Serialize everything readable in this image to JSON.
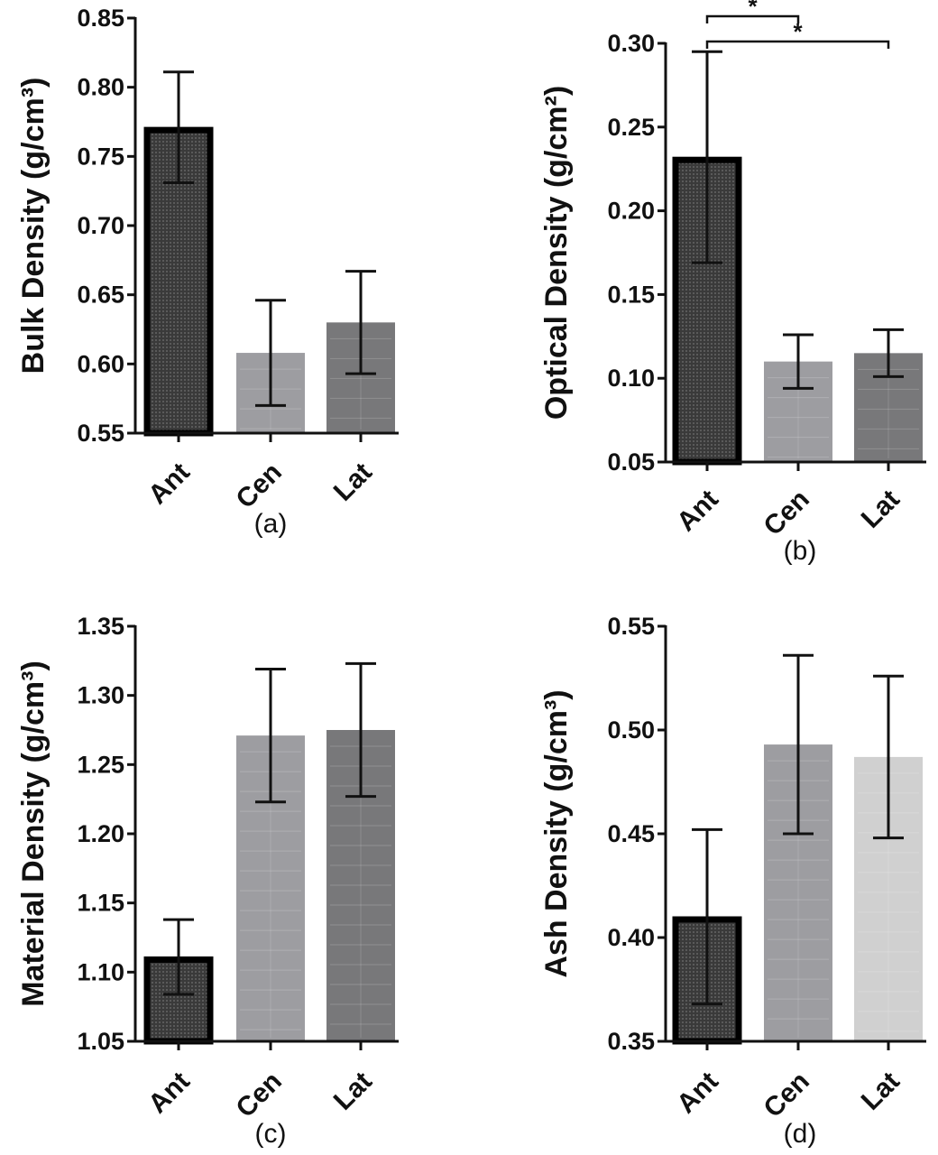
{
  "chart_data": [
    {
      "type": "bar",
      "panel_label": "(a)",
      "ylabel": "Bulk Density (g/cm³)",
      "ylim": [
        0.55,
        0.85
      ],
      "yticks": [
        "0.55",
        "0.60",
        "0.65",
        "0.70",
        "0.75",
        "0.80",
        "0.85"
      ],
      "categories": [
        "Ant",
        "Cen",
        "Lat"
      ],
      "values": [
        0.771,
        0.608,
        0.63
      ],
      "errors": [
        0.04,
        0.038,
        0.037
      ],
      "colors": [
        "#3a3a3a",
        "#9d9da1",
        "#78787a"
      ],
      "significance": []
    },
    {
      "type": "bar",
      "panel_label": "(b)",
      "ylabel": "Optical Density (g/cm²)",
      "ylim": [
        0.05,
        0.3
      ],
      "yticks": [
        "0.05",
        "0.10",
        "0.15",
        "0.20",
        "0.25",
        "0.30"
      ],
      "categories": [
        "Ant",
        "Cen",
        "Lat"
      ],
      "values": [
        0.232,
        0.11,
        0.115
      ],
      "errors": [
        0.063,
        0.016,
        0.014
      ],
      "colors": [
        "#3a3a3a",
        "#9d9da1",
        "#78787a"
      ],
      "significance": [
        {
          "from": 0,
          "to": 1,
          "label": "*"
        },
        {
          "from": 0,
          "to": 2,
          "label": "*"
        }
      ]
    },
    {
      "type": "bar",
      "panel_label": "(c)",
      "ylabel": "Material Density (g/cm³)",
      "ylim": [
        1.05,
        1.35
      ],
      "yticks": [
        "1.05",
        "1.10",
        "1.15",
        "1.20",
        "1.25",
        "1.30",
        "1.35"
      ],
      "categories": [
        "Ant",
        "Cen",
        "Lat"
      ],
      "values": [
        1.111,
        1.271,
        1.275
      ],
      "errors": [
        0.027,
        0.048,
        0.048
      ],
      "colors": [
        "#3a3a3a",
        "#9d9da1",
        "#78787a"
      ],
      "significance": []
    },
    {
      "type": "bar",
      "panel_label": "(d)",
      "ylabel": "Ash Density (g/cm³)",
      "ylim": [
        0.35,
        0.55
      ],
      "yticks": [
        "0.35",
        "0.40",
        "0.45",
        "0.50",
        "0.55"
      ],
      "categories": [
        "Ant",
        "Cen",
        "Lat"
      ],
      "values": [
        0.41,
        0.493,
        0.487
      ],
      "errors": [
        0.042,
        0.043,
        0.039
      ],
      "colors": [
        "#3a3a3a",
        "#9d9da1",
        "#d0d0d0"
      ],
      "significance": []
    }
  ]
}
